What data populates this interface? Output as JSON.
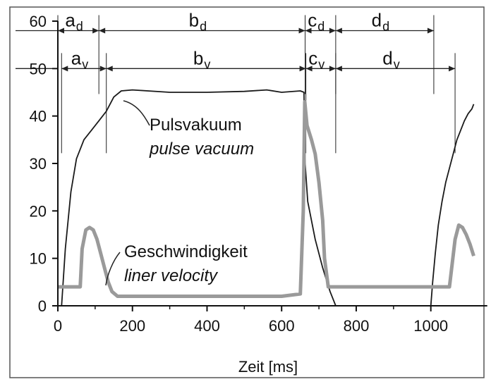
{
  "chart_data": {
    "type": "line",
    "xlabel": "Zeit [ms]",
    "ylabel": "",
    "xlim": [
      0,
      1150
    ],
    "ylim": [
      0,
      60
    ],
    "x_ticks": [
      0,
      200,
      400,
      600,
      800,
      1000
    ],
    "y_ticks": [
      0,
      10,
      20,
      30,
      40,
      50,
      60
    ],
    "grid": false,
    "colors": {
      "pulse_vacuum": "#1a1a1a",
      "liner_velocity": "#9a9a9a",
      "annotation": "#222222"
    },
    "series": [
      {
        "key": "pulse_vacuum",
        "x": [
          10,
          20,
          35,
          50,
          70,
          90,
          110,
          130,
          150,
          170,
          200,
          300,
          400,
          500,
          560,
          600,
          650,
          660,
          663,
          670,
          690,
          710,
          730,
          745,
          760,
          1000,
          1005,
          1012,
          1020,
          1030,
          1040,
          1050,
          1060,
          1070,
          1080,
          1090,
          1100,
          1110,
          1115
        ],
        "y": [
          0,
          12,
          24,
          31,
          35,
          37,
          39,
          41,
          44,
          45.3,
          45.5,
          45,
          45,
          45.2,
          45.5,
          45,
          45.3,
          45,
          30,
          22,
          14,
          8,
          3,
          0,
          0,
          0,
          5,
          11,
          17,
          22,
          26,
          29,
          32,
          35,
          37,
          39,
          40.5,
          41.5,
          42.5
        ]
      },
      {
        "key": "liner_velocity",
        "x": [
          0,
          30,
          60,
          65,
          75,
          85,
          95,
          105,
          115,
          125,
          135,
          145,
          160,
          200,
          300,
          400,
          500,
          600,
          650,
          658,
          662,
          668,
          680,
          690,
          700,
          710,
          715,
          725,
          740,
          800,
          900,
          1000,
          1050,
          1065,
          1075,
          1085,
          1095,
          1105,
          1115
        ],
        "y": [
          4,
          4,
          4,
          12,
          16,
          16.5,
          16,
          14,
          11,
          8,
          5,
          3,
          2,
          2,
          2,
          2,
          2,
          2,
          2.5,
          20,
          43,
          38,
          35,
          32,
          26,
          18,
          10,
          4,
          4,
          4,
          4,
          4,
          4,
          14,
          17,
          16.5,
          15,
          13,
          10.5
        ]
      }
    ],
    "series_labels": {
      "pulse_vacuum": {
        "de": "Pulsvakuum",
        "en": "pulse vacuum"
      },
      "liner_velocity": {
        "de": "Geschwindigkeit",
        "en": "liner velocity"
      }
    },
    "phases_top": [
      {
        "main": "a",
        "sub": "d",
        "start": 0,
        "end": 110
      },
      {
        "main": "b",
        "sub": "d",
        "start": 110,
        "end": 663
      },
      {
        "main": "c",
        "sub": "d",
        "start": 663,
        "end": 745
      },
      {
        "main": "d",
        "sub": "d",
        "start": 745,
        "end": 1008
      }
    ],
    "phases_bottom": [
      {
        "main": "a",
        "sub": "v",
        "start": 10,
        "end": 130
      },
      {
        "main": "b",
        "sub": "v",
        "start": 130,
        "end": 665
      },
      {
        "main": "c",
        "sub": "v",
        "start": 665,
        "end": 745
      },
      {
        "main": "d",
        "sub": "v",
        "start": 745,
        "end": 1065
      }
    ],
    "phase_top_y": 58,
    "phase_bottom_y": 50
  }
}
